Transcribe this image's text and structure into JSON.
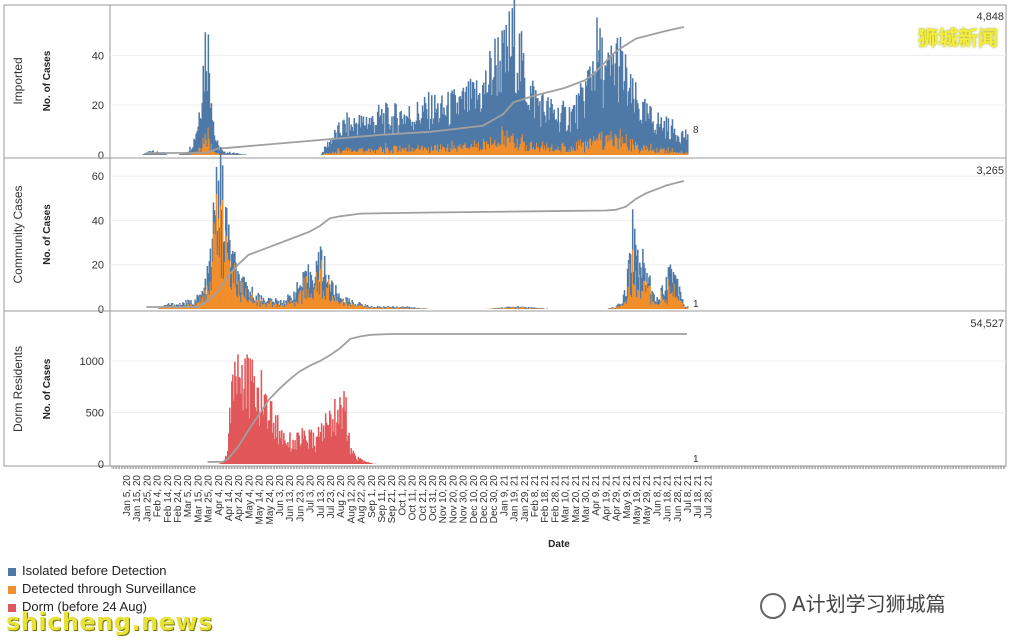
{
  "chart_data": {
    "type": "bar",
    "xlabel": "Date",
    "x_ticks": [
      "Jan 5, 20",
      "Jan 15, 20",
      "Jan 25, 20",
      "Feb 4, 20",
      "Feb 14, 20",
      "Feb 24, 20",
      "Mar 5, 20",
      "Mar 15, 20",
      "Mar 25, 20",
      "Apr 4, 20",
      "Apr 14, 20",
      "Apr 24, 20",
      "May 4, 20",
      "May 14, 20",
      "May 24, 20",
      "Jun 3, 20",
      "Jun 13, 20",
      "Jun 23, 20",
      "Jul 3, 20",
      "Jul 13, 20",
      "Jul 23, 20",
      "Aug 2, 20",
      "Aug 12, 20",
      "Aug 22, 20",
      "Sep 1, 20",
      "Sep 11, 20",
      "Sep 21, 20",
      "Oct 1, 20",
      "Oct 11, 20",
      "Oct 21, 20",
      "Oct 31, 20",
      "Nov 10, 20",
      "Nov 20, 20",
      "Nov 30, 20",
      "Dec 10, 20",
      "Dec 20, 20",
      "Dec 30, 20",
      "Jan 9, 21",
      "Jan 19, 21",
      "Jan 29, 21",
      "Feb 8, 21",
      "Feb 18, 21",
      "Feb 28, 21",
      "Mar 10, 21",
      "Mar 20, 21",
      "Mar 30, 21",
      "Apr 9, 21",
      "Apr 19, 21",
      "Apr 29, 21",
      "May 9, 21",
      "May 19, 21",
      "May 29, 21",
      "Jun 8, 21",
      "Jun 18, 21",
      "Jun 28, 21",
      "Jul 8, 21",
      "Jul 18, 21",
      "Jul 28, 21"
    ],
    "legend": [
      {
        "name": "Isolated before Detection",
        "color": "#4e79a7"
      },
      {
        "name": "Detected through Surveillance",
        "color": "#f28e2b"
      },
      {
        "name": "Dorm (before 24 Aug)",
        "color": "#e15759"
      }
    ],
    "cumulative_line_color": "#a0a0a0",
    "panels": [
      {
        "label": "Imported",
        "ylabel": "No. of Cases",
        "ylim": [
          0,
          55
        ],
        "y_ticks": [
          0,
          20,
          40
        ],
        "total_label": "4,848",
        "last_value_label": "8",
        "keypoints_tick_index": [
          0,
          1.5,
          2,
          2.5,
          3,
          3.5,
          4,
          5,
          5.8,
          6.3,
          6.6,
          7,
          7.3,
          7.6,
          7.8,
          8,
          8.2,
          8.4,
          8.6,
          9,
          9.5,
          10,
          12,
          15,
          18,
          19,
          19.5,
          20,
          20.5,
          21,
          21.5,
          22,
          22.5,
          23,
          23.5,
          24,
          25,
          26,
          27,
          28,
          29,
          30,
          31,
          32,
          33,
          34,
          35,
          35.5,
          36,
          36.5,
          37,
          37.5,
          38,
          38.5,
          39,
          39.5,
          40,
          40.5,
          41,
          42,
          43,
          44,
          44.5,
          45,
          45.5,
          46,
          46.5,
          47,
          47.5,
          48,
          48.5,
          49,
          49.5,
          50,
          50.5,
          51,
          51.5,
          52,
          52.5,
          53,
          53.5,
          54,
          54.4,
          54.7,
          55
        ],
        "keypoints_value": [
          0,
          0,
          1,
          2,
          1,
          1,
          0,
          0,
          1,
          3,
          6,
          13,
          25,
          37,
          47,
          40,
          30,
          22,
          8,
          3,
          1,
          1,
          0,
          0,
          0,
          0,
          3,
          6,
          8,
          10,
          12,
          11,
          13,
          12,
          14,
          13,
          15,
          14,
          16,
          15,
          17,
          18,
          17,
          19,
          20,
          22,
          25,
          30,
          35,
          38,
          36,
          42,
          45,
          38,
          30,
          25,
          22,
          20,
          18,
          16,
          15,
          17,
          20,
          25,
          32,
          40,
          36,
          30,
          33,
          38,
          34,
          28,
          22,
          20,
          17,
          15,
          14,
          13,
          12,
          11,
          10,
          9,
          8,
          8,
          8
        ],
        "surveillance_fraction": 0.15,
        "cumulative": {
          "tick_index": [
            2,
            5,
            7,
            8,
            9,
            9.5,
            25,
            30,
            35,
            37,
            38,
            40,
            43,
            45,
            46,
            47,
            48,
            50,
            53,
            54.7
          ],
          "value": [
            0,
            0,
            2,
            20,
            170,
            180,
            700,
            820,
            1050,
            1500,
            1950,
            2200,
            2500,
            2800,
            3100,
            3500,
            3900,
            4400,
            4700,
            4848
          ]
        }
      },
      {
        "label": "Community Cases",
        "ylabel": "No. of Cases",
        "ylim": [
          0,
          65
        ],
        "y_ticks": [
          0,
          20,
          40,
          60
        ],
        "total_label": "3,265",
        "last_value_label": "1",
        "keypoints_tick_index": [
          0,
          3,
          4,
          5,
          6,
          6.5,
          7,
          7.5,
          8,
          8.3,
          8.6,
          9,
          9.3,
          9.6,
          10,
          10.5,
          11,
          12,
          13,
          14,
          15,
          16,
          17,
          18,
          18.5,
          19,
          19.5,
          20,
          21,
          22,
          23,
          24,
          27,
          30,
          35,
          38,
          42,
          45,
          47,
          48,
          48.5,
          49,
          49.3,
          49.6,
          50,
          50.5,
          51,
          51.5,
          52,
          52.5,
          53,
          53.5,
          54,
          54.5,
          54.7,
          55
        ],
        "keypoints_value": [
          0,
          0,
          2,
          2,
          3,
          3,
          5,
          7,
          15,
          25,
          40,
          58,
          50,
          40,
          30,
          20,
          12,
          8,
          5,
          4,
          3,
          5,
          10,
          15,
          18,
          20,
          18,
          10,
          5,
          3,
          2,
          1,
          1,
          0,
          0,
          1,
          0,
          0,
          0,
          1,
          3,
          10,
          22,
          32,
          25,
          20,
          15,
          10,
          4,
          8,
          15,
          18,
          12,
          5,
          1,
          1
        ],
        "surveillance_fraction": 0.55,
        "cumulative": {
          "tick_index": [
            2,
            7,
            8,
            9,
            10,
            11,
            12,
            14,
            16,
            18,
            19,
            20,
            21,
            23,
            30,
            40,
            47,
            48,
            49,
            50,
            51,
            52,
            53,
            54,
            54.7
          ],
          "value": [
            0,
            0,
            150,
            400,
            800,
            1100,
            1350,
            1550,
            1750,
            1950,
            2100,
            2300,
            2350,
            2420,
            2450,
            2480,
            2500,
            2520,
            2600,
            2800,
            2950,
            3050,
            3150,
            3220,
            3265
          ]
        }
      },
      {
        "label": "Dorm Residents",
        "ylabel": "No. of Cases",
        "ylim": [
          0,
          1400
        ],
        "y_ticks": [
          0,
          500,
          1000
        ],
        "total_label": "54,527",
        "last_value_label": "1",
        "keypoints_tick_index": [
          0,
          9,
          9.5,
          9.9,
          10.2,
          10.6,
          11,
          11.5,
          12,
          12.5,
          13,
          13.5,
          14,
          14.5,
          15,
          15.5,
          16,
          16.5,
          17,
          17.5,
          18,
          18.5,
          19,
          19.5,
          20,
          20.5,
          21,
          21.3,
          21.6,
          22,
          22.5,
          23,
          23.5,
          24,
          25,
          26,
          55
        ],
        "keypoints_value": [
          0,
          0,
          20,
          120,
          600,
          1000,
          880,
          800,
          750,
          700,
          650,
          600,
          500,
          400,
          300,
          260,
          220,
          200,
          260,
          220,
          240,
          200,
          300,
          360,
          420,
          500,
          450,
          870,
          300,
          120,
          60,
          40,
          20,
          5,
          0,
          0,
          0
        ],
        "surveillance_fraction": 0,
        "cumulative": {
          "tick_index": [
            8,
            9.5,
            10,
            11,
            12,
            13,
            14,
            15,
            16,
            17,
            18,
            19,
            20,
            21,
            22,
            23,
            24,
            26,
            55
          ],
          "value": [
            0,
            100,
            1300,
            6500,
            13500,
            20000,
            26500,
            31000,
            35000,
            38500,
            41000,
            43000,
            45500,
            48500,
            52500,
            53500,
            54200,
            54527,
            54527
          ]
        }
      }
    ]
  },
  "watermarks": {
    "top_right": "狮城新闻",
    "wechat": "A计划学习狮城篇",
    "bottom_left": "shicheng.news"
  }
}
